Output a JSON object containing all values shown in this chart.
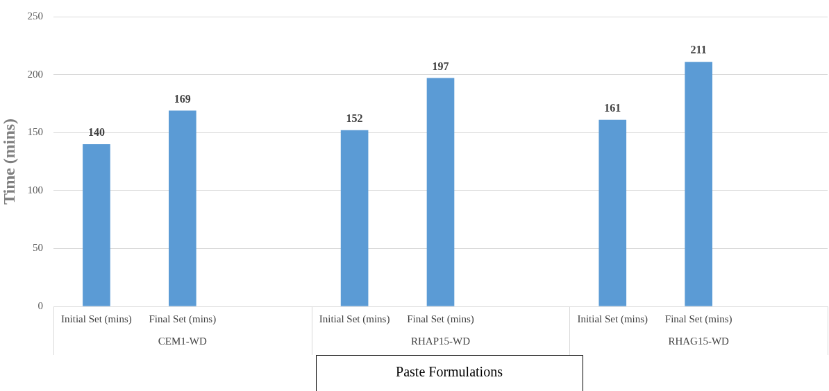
{
  "chart_data": {
    "type": "bar",
    "ylabel": "Time (mins)",
    "xlabel": "Paste Formulations",
    "categories": [
      "Initial Set (mins)",
      "Final Set (mins)",
      null,
      "Initial Set (mins)",
      "Final Set (mins)",
      null,
      "Initial Set (mins)",
      "Final Set (mins)",
      null
    ],
    "values": [
      140,
      169,
      null,
      152,
      197,
      null,
      161,
      211,
      null
    ],
    "color": "#5b9bd5",
    "ylim": [
      0,
      250
    ],
    "yticks": [
      0,
      50,
      100,
      150,
      200,
      250
    ],
    "grid": "y",
    "data_labels": true,
    "legend": false,
    "annotations": [
      "CEM1-WD",
      "RHAP15-WD",
      "RHAG15-WD"
    ]
  }
}
